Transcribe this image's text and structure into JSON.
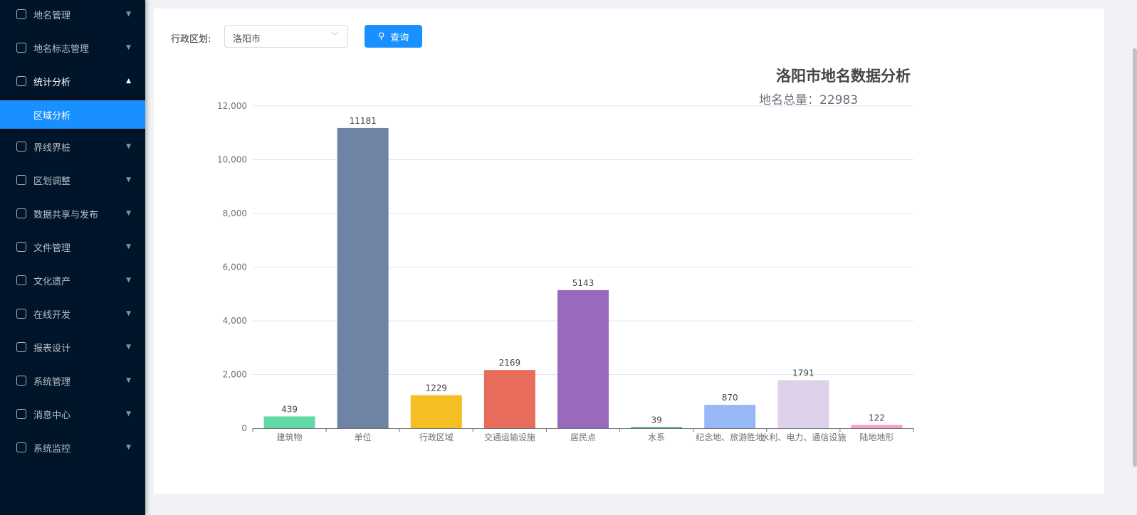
{
  "sidebar": {
    "items": [
      {
        "label": "地名管理",
        "icon": "location-icon",
        "open": false
      },
      {
        "label": "地名标志管理",
        "icon": "save-icon",
        "open": false
      },
      {
        "label": "统计分析",
        "icon": "bar-chart-icon",
        "open": true
      },
      {
        "label": "界线界桩",
        "icon": "boundary-icon",
        "open": false
      },
      {
        "label": "区划调整",
        "icon": "polygon-icon",
        "open": false
      },
      {
        "label": "数据共享与发布",
        "icon": "sync-icon",
        "open": false
      },
      {
        "label": "文件管理",
        "icon": "file-icon",
        "open": false
      },
      {
        "label": "文化遗产",
        "icon": "heritage-icon",
        "open": false
      },
      {
        "label": "在线开发",
        "icon": "cloud-icon",
        "open": false
      },
      {
        "label": "报表设计",
        "icon": "area-chart-icon",
        "open": false
      },
      {
        "label": "系统管理",
        "icon": "gear-icon",
        "open": false
      },
      {
        "label": "消息中心",
        "icon": "message-icon",
        "open": false
      },
      {
        "label": "系统监控",
        "icon": "dashboard-icon",
        "open": false
      }
    ],
    "sub_item": "区域分析"
  },
  "filter": {
    "label": "行政区划:",
    "value": "洛阳市",
    "query_label": "查询"
  },
  "chart_data": {
    "type": "bar",
    "title": "洛阳市地名数据分析",
    "subtitle": "地名总量：22983",
    "categories": [
      "建筑物",
      "单位",
      "行政区域",
      "交通运输设施",
      "居民点",
      "水系",
      "纪念地、旅游胜地",
      "水利、电力、通信设施",
      "陆地地形"
    ],
    "values": [
      439,
      11181,
      1229,
      2169,
      5143,
      39,
      870,
      1791,
      122
    ],
    "colors": [
      "#62d9a7",
      "#6f83a5",
      "#f5be23",
      "#e86c5b",
      "#9a69bc",
      "#3ba272",
      "#98b7f5",
      "#ded2ea",
      "#f5a0c8"
    ],
    "ylim": [
      0,
      12000
    ],
    "yticks": [
      "0",
      "2,000",
      "4,000",
      "6,000",
      "8,000",
      "10,000",
      "12,000"
    ],
    "grid": true
  }
}
